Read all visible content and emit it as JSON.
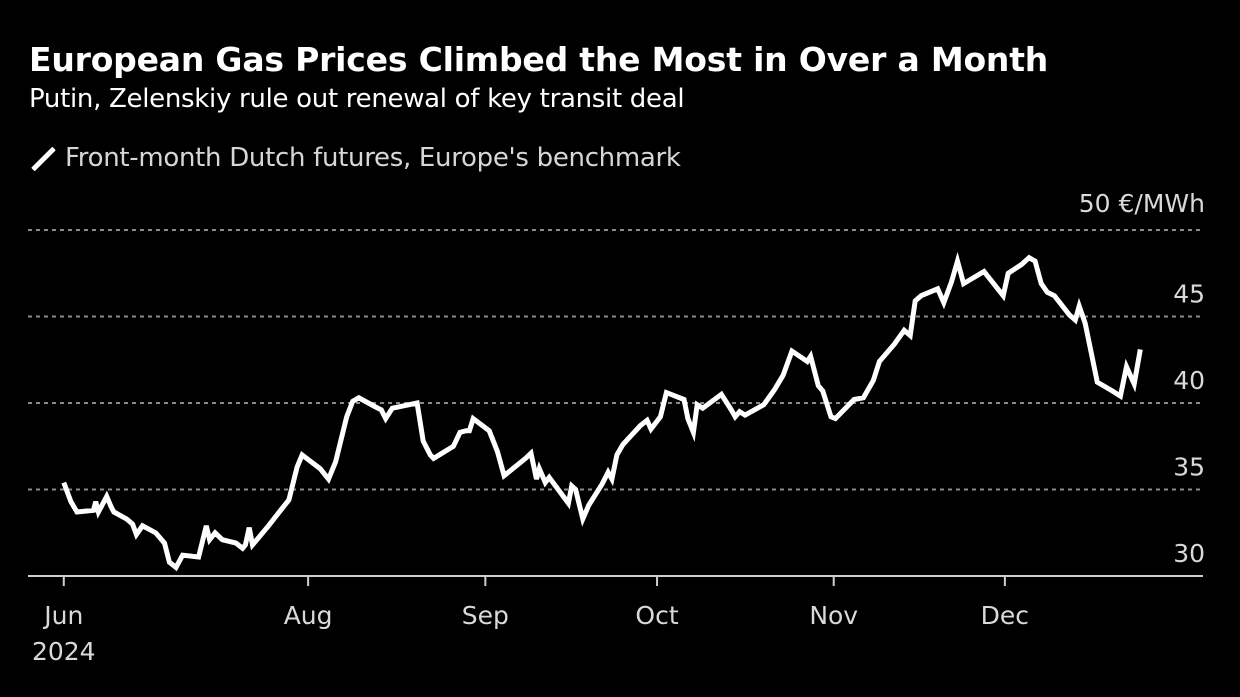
{
  "header": {
    "title": "European Gas Prices Climbed the Most in Over a Month",
    "subtitle": "Putin, Zelenskiy rule out renewal of key transit deal"
  },
  "legend": {
    "items": [
      {
        "label": "Front-month Dutch futures, Europe's benchmark",
        "color": "#ffffff",
        "icon": "diagonal-line-icon"
      }
    ]
  },
  "chart_data": {
    "type": "line",
    "title": "European Gas Prices Climbed the Most in Over a Month",
    "subtitle": "Putin, Zelenskiy rule out renewal of key transit deal",
    "xlabel": "",
    "ylabel": "€/MWh",
    "y_unit_label": "50 €/MWh",
    "ylim": [
      30,
      50
    ],
    "yticks": [
      30,
      35,
      40,
      45,
      50
    ],
    "ytick_labels": [
      "30",
      "35",
      "40",
      "45",
      "50 €/MWh"
    ],
    "grid": true,
    "legend_position": "top-left",
    "x_is_trading_day_index": true,
    "xlim": [
      -6.5,
      207
    ],
    "xticks": [
      {
        "index": 0,
        "label": "Jun",
        "sublabel": "2024"
      },
      {
        "index": 44.4,
        "label": "Aug",
        "sublabel": ""
      },
      {
        "index": 76.6,
        "label": "Sep",
        "sublabel": ""
      },
      {
        "index": 107.8,
        "label": "Oct",
        "sublabel": ""
      },
      {
        "index": 139.9,
        "label": "Nov",
        "sublabel": ""
      },
      {
        "index": 171.0,
        "label": "Dec",
        "sublabel": ""
      }
    ],
    "series": [
      {
        "name": "Front-month Dutch futures, Europe's benchmark",
        "color": "#ffffff",
        "points": [
          [
            0,
            35.4
          ],
          [
            1.3,
            34.3
          ],
          [
            2.4,
            33.7
          ],
          [
            5.4,
            33.8
          ],
          [
            5.8,
            34.3
          ],
          [
            6.3,
            33.7
          ],
          [
            6.8,
            34.0
          ],
          [
            7.8,
            34.6
          ],
          [
            8.6,
            34.0
          ],
          [
            9.1,
            33.7
          ],
          [
            11.4,
            33.3
          ],
          [
            12.5,
            33.0
          ],
          [
            13.2,
            32.4
          ],
          [
            14.3,
            32.9
          ],
          [
            16.7,
            32.5
          ],
          [
            18.3,
            31.9
          ],
          [
            19.2,
            30.8
          ],
          [
            20.4,
            30.5
          ],
          [
            21.6,
            31.2
          ],
          [
            24.5,
            31.1
          ],
          [
            25.9,
            32.9
          ],
          [
            26.5,
            32.1
          ],
          [
            27.5,
            32.5
          ],
          [
            28.8,
            32.1
          ],
          [
            31.3,
            31.9
          ],
          [
            32.5,
            31.6
          ],
          [
            33.0,
            31.8
          ],
          [
            33.7,
            32.8
          ],
          [
            34.3,
            31.8
          ],
          [
            37.2,
            32.9
          ],
          [
            39.4,
            33.8
          ],
          [
            40.9,
            34.4
          ],
          [
            42.4,
            36.3
          ],
          [
            43.3,
            37.0
          ],
          [
            46.6,
            36.2
          ],
          [
            48.1,
            35.6
          ],
          [
            49.4,
            36.6
          ],
          [
            51.4,
            39.2
          ],
          [
            52.5,
            40.1
          ],
          [
            53.6,
            40.3
          ],
          [
            56.5,
            39.8
          ],
          [
            57.7,
            39.6
          ],
          [
            58.5,
            39.1
          ],
          [
            59.7,
            39.7
          ],
          [
            64.2,
            40.0
          ],
          [
            65.3,
            37.8
          ],
          [
            66.6,
            37.0
          ],
          [
            67.2,
            36.8
          ],
          [
            70.8,
            37.5
          ],
          [
            72.0,
            38.3
          ],
          [
            73.1,
            38.4
          ],
          [
            73.7,
            38.4
          ],
          [
            74.4,
            39.1
          ],
          [
            77.3,
            38.4
          ],
          [
            78.8,
            37.2
          ],
          [
            80.0,
            35.8
          ],
          [
            83.9,
            36.8
          ],
          [
            84.9,
            37.1
          ],
          [
            85.9,
            35.6
          ],
          [
            86.4,
            36.2
          ],
          [
            87.5,
            35.4
          ],
          [
            88.2,
            35.7
          ],
          [
            91.7,
            34.2
          ],
          [
            92.3,
            35.2
          ],
          [
            93.0,
            35.0
          ],
          [
            94.3,
            33.3
          ],
          [
            95.4,
            34.1
          ],
          [
            97.8,
            35.3
          ],
          [
            98.9,
            36.0
          ],
          [
            99.6,
            35.6
          ],
          [
            100.5,
            37.0
          ],
          [
            101.6,
            37.6
          ],
          [
            104.8,
            38.7
          ],
          [
            106.0,
            39.0
          ],
          [
            106.7,
            38.5
          ],
          [
            108.4,
            39.2
          ],
          [
            109.5,
            40.6
          ],
          [
            112.7,
            40.2
          ],
          [
            113.4,
            39.1
          ],
          [
            114.4,
            38.3
          ],
          [
            115.1,
            39.9
          ],
          [
            116.1,
            39.7
          ],
          [
            119.5,
            40.5
          ],
          [
            121.3,
            39.6
          ],
          [
            122.0,
            39.2
          ],
          [
            122.8,
            39.5
          ],
          [
            123.8,
            39.3
          ],
          [
            127.2,
            39.9
          ],
          [
            129.2,
            40.8
          ],
          [
            130.7,
            41.6
          ],
          [
            132.3,
            43.0
          ],
          [
            135.1,
            42.4
          ],
          [
            135.7,
            42.7
          ],
          [
            137.1,
            41.0
          ],
          [
            137.9,
            40.7
          ],
          [
            139.4,
            39.2
          ],
          [
            140.2,
            39.1
          ],
          [
            143.6,
            40.2
          ],
          [
            145.3,
            40.3
          ],
          [
            147.1,
            41.3
          ],
          [
            148.2,
            42.4
          ],
          [
            150.9,
            43.4
          ],
          [
            152.7,
            44.2
          ],
          [
            153.8,
            43.9
          ],
          [
            154.7,
            45.9
          ],
          [
            155.8,
            46.2
          ],
          [
            158.8,
            46.6
          ],
          [
            159.9,
            45.8
          ],
          [
            161.3,
            47.0
          ],
          [
            162.4,
            48.2
          ],
          [
            163.5,
            46.9
          ],
          [
            167.2,
            47.6
          ],
          [
            170.7,
            46.2
          ],
          [
            171.6,
            47.5
          ],
          [
            174.0,
            48.0
          ],
          [
            175.4,
            48.4
          ],
          [
            176.5,
            48.2
          ],
          [
            177.6,
            46.9
          ],
          [
            178.7,
            46.4
          ],
          [
            180.0,
            46.2
          ],
          [
            182.7,
            45.1
          ],
          [
            183.8,
            44.8
          ],
          [
            184.5,
            45.6
          ],
          [
            185.6,
            44.6
          ],
          [
            187.8,
            41.2
          ],
          [
            190.5,
            40.7
          ],
          [
            192.0,
            40.4
          ],
          [
            193.1,
            42.1
          ],
          [
            194.5,
            41.1
          ],
          [
            195.6,
            43.1
          ]
        ]
      }
    ]
  }
}
